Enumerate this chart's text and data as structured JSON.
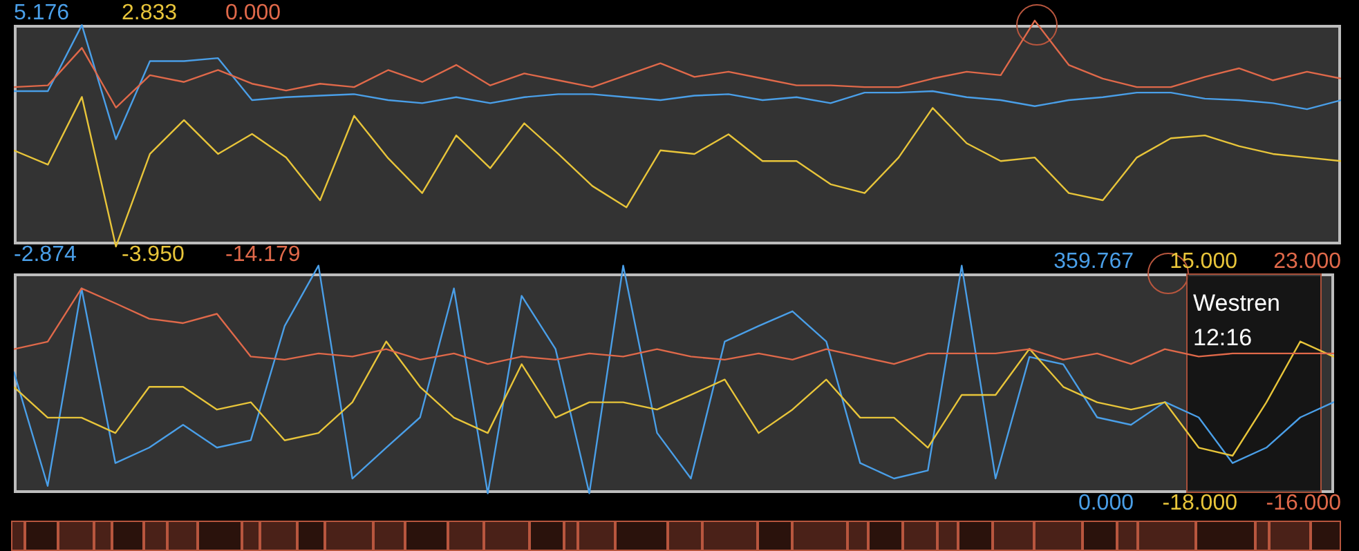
{
  "chart_data": [
    {
      "type": "line",
      "categories": [
        null,
        null,
        null,
        null,
        null,
        null,
        null,
        null,
        null,
        null,
        null,
        null,
        null,
        null,
        null,
        null,
        null,
        null,
        null,
        null,
        null,
        null,
        null,
        null,
        null,
        null,
        null,
        null,
        null,
        null,
        null,
        null,
        null,
        null,
        null,
        null,
        null,
        null,
        null,
        null
      ],
      "series": [
        {
          "color": "#4a9fe8",
          "axis": "y",
          "values": [
            2.6,
            2.6,
            4.8,
            1.0,
            3.6,
            3.6,
            3.7,
            2.3,
            2.4,
            2.45,
            2.5,
            2.3,
            2.2,
            2.4,
            2.2,
            2.4,
            2.5,
            2.5,
            2.4,
            2.3,
            2.45,
            2.5,
            2.3,
            2.4,
            2.2,
            2.55,
            2.55,
            2.6,
            2.4,
            2.3,
            2.1,
            2.3,
            2.4,
            2.55,
            2.55,
            2.35,
            2.3,
            2.2,
            2.0,
            2.3
          ]
        },
        {
          "color": "#e8c53a",
          "axis": "y2",
          "values": [
            -1.0,
            -1.4,
            0.5,
            -3.7,
            -1.1,
            -0.15,
            -1.1,
            -0.54,
            -1.2,
            -2.4,
            -0.03,
            -1.22,
            -2.2,
            -0.58,
            -1.5,
            -0.24,
            -1.1,
            -2.0,
            -2.6,
            -1.0,
            -1.1,
            -0.55,
            -1.3,
            -1.3,
            -1.95,
            -2.2,
            -1.2,
            0.19,
            -0.8,
            -1.3,
            -1.2,
            -2.2,
            -2.4,
            -1.2,
            -0.66,
            -0.58,
            -0.88,
            -1.1,
            -1.2,
            -1.3
          ]
        },
        {
          "color": "#e0694a",
          "axis": "y3",
          "values": [
            -4.3,
            -4.2,
            -2.0,
            -5.5,
            -3.6,
            -4.0,
            -3.3,
            -4.1,
            -4.5,
            -4.1,
            -4.3,
            -3.3,
            -4.0,
            -3.0,
            -4.2,
            -3.5,
            -3.9,
            -4.3,
            -3.6,
            -2.9,
            -3.7,
            -3.4,
            -3.8,
            -4.2,
            -4.2,
            -4.3,
            -4.3,
            -3.8,
            -3.4,
            -3.6,
            -0.4,
            -3.0,
            -3.8,
            -4.3,
            -4.3,
            -3.7,
            -3.2,
            -3.9,
            -3.4,
            -3.8
          ]
        }
      ],
      "ylim": [
        -2.874,
        5.176
      ],
      "yticks": [
        {
          "value": -2.874,
          "label": "-2.874"
        },
        {
          "value": 5.176,
          "label": "5.176"
        }
      ],
      "y2lim": [
        -3.95,
        2.833
      ],
      "y2ticks": [
        {
          "value": -3.95,
          "label": "-3.950"
        },
        {
          "value": 2.833,
          "label": "2.833"
        }
      ],
      "y3lim": [
        -14.179,
        0
      ],
      "y3ticks": [
        {
          "value": -14.179,
          "label": "-14.179"
        },
        {
          "value": 0,
          "label": "0.000"
        }
      ],
      "tick_labels": "y"
    },
    {
      "type": "line",
      "categories": [
        null,
        null,
        null,
        null,
        null,
        null,
        null,
        null,
        null,
        null,
        null,
        null,
        null,
        null,
        null,
        null,
        null,
        null,
        null,
        null,
        null,
        null,
        null,
        null,
        null,
        null,
        null,
        null,
        null,
        null,
        null,
        null,
        null,
        null,
        null,
        null,
        null,
        null,
        null,
        null
      ],
      "series": [
        {
          "color": "#4a9fe8",
          "axis": "y",
          "values": [
            197,
            27,
            321,
            61,
            84,
            118,
            84,
            95,
            265,
            355,
            38,
            84,
            129,
            321,
            16,
            310,
            231,
            16,
            355,
            106,
            38,
            242,
            265,
            287,
            242,
            61,
            38,
            50,
            355,
            38,
            219,
            208,
            129,
            118,
            152,
            129,
            61,
            84,
            129,
            152
          ]
        },
        {
          "color": "#e8c53a",
          "axis": "y2",
          "values": [
            -2.0,
            -6.2,
            -6.2,
            -8.3,
            -2.0,
            -2.0,
            -5.1,
            -4.1,
            -9.3,
            -8.3,
            -4.1,
            4.2,
            -2.0,
            -6.2,
            -8.3,
            1.1,
            -6.2,
            -4.1,
            -4.1,
            -5.1,
            -3.1,
            -1.0,
            -8.3,
            -5.1,
            -1.0,
            -6.2,
            -6.2,
            -10.3,
            -3.1,
            -3.1,
            3.2,
            -2.0,
            -4.1,
            -5.1,
            -4.1,
            -10.3,
            -11.4,
            -4.1,
            4.2,
            2.1
          ]
        },
        {
          "color": "#e0694a",
          "axis": "y3",
          "values": [
            9.0,
            10.2,
            18.8,
            16.4,
            13.9,
            13.2,
            14.7,
            7.8,
            7.3,
            8.3,
            7.8,
            9.0,
            7.3,
            8.3,
            6.6,
            7.8,
            7.3,
            8.3,
            7.8,
            9.0,
            7.8,
            7.3,
            8.3,
            7.3,
            9.0,
            7.8,
            6.6,
            8.3,
            8.3,
            8.3,
            9.0,
            7.3,
            8.3,
            6.6,
            9.0,
            7.8,
            8.3,
            8.3,
            8.3,
            8.3
          ]
        }
      ],
      "ylim": [
        0,
        359.767
      ],
      "yticks": [
        {
          "value": 0,
          "label": "0.000"
        },
        {
          "value": 359.767,
          "label": "359.767"
        }
      ],
      "y2lim": [
        -18,
        15
      ],
      "y2ticks": [
        {
          "value": -18,
          "label": "-18.000"
        },
        {
          "value": 15,
          "label": "15.000"
        }
      ],
      "y3lim": [
        -16,
        23
      ],
      "y3ticks": [
        {
          "value": -16,
          "label": "-16.000"
        },
        {
          "value": 23,
          "label": "23.000"
        }
      ],
      "tick_labels": "y",
      "annotations": [
        "Westren\n12:16"
      ]
    }
  ]
}
